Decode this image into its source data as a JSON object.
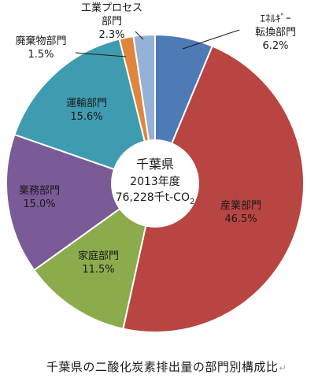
{
  "chart_data": {
    "type": "pie",
    "center_text": [
      "千葉県",
      "2013年度",
      "76,228千t-CO",
      "2"
    ],
    "caption": "千葉県の二酸化炭素排出量の部門別構成比",
    "caption_mark": "↵",
    "slices": [
      {
        "label": "エネルギー転換部門",
        "label_lines": [
          "ｴﾈﾙｷﾞｰ",
          "転換部門"
        ],
        "value": 6.2,
        "value_text": "6.2%",
        "color": "#4e7ab5"
      },
      {
        "label": "産業部門",
        "label_lines": [
          "産業部門"
        ],
        "value": 46.5,
        "value_text": "46.5%",
        "color": "#b84541"
      },
      {
        "label": "家庭部門",
        "label_lines": [
          "家庭部門"
        ],
        "value": 11.5,
        "value_text": "11.5%",
        "color": "#8cab4c"
      },
      {
        "label": "業務部門",
        "label_lines": [
          "業務部門"
        ],
        "value": 15.0,
        "value_text": "15.0%",
        "color": "#7a5b98"
      },
      {
        "label": "運輸部門",
        "label_lines": [
          "運輸部門"
        ],
        "value": 15.6,
        "value_text": "15.6%",
        "color": "#3f9bb0"
      },
      {
        "label": "廃棄物部門",
        "label_lines": [
          "廃棄物部門"
        ],
        "value": 1.5,
        "value_text": "1.5%",
        "color": "#e0853e"
      },
      {
        "label": "工業プロセス部門",
        "label_lines": [
          "工業プロセス",
          "部門"
        ],
        "value": 2.3,
        "value_text": "2.3%",
        "color": "#95b1d8"
      }
    ]
  }
}
